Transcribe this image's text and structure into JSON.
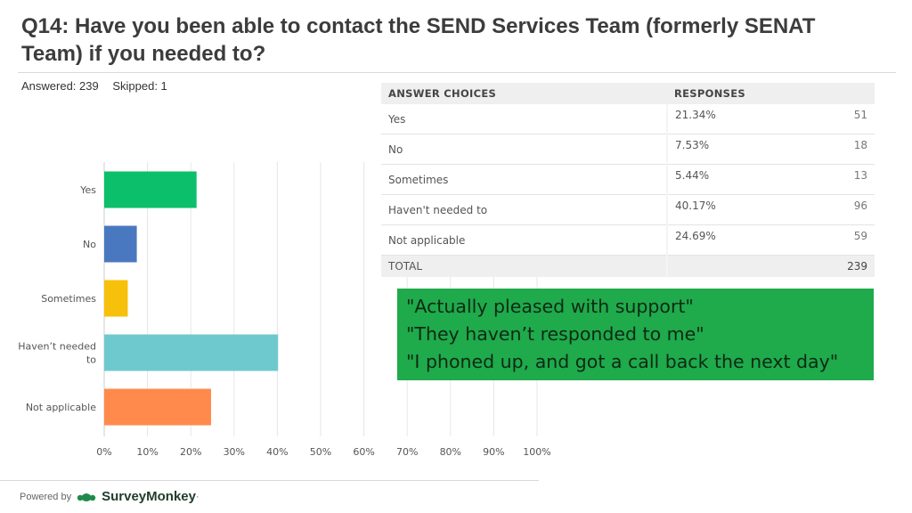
{
  "title": "Q14: Have you been able to contact the SEND Services Team (formerly SENAT Team) if you needed to?",
  "stats": {
    "answered": "Answered: 239",
    "skipped": "Skipped: 1"
  },
  "chart_data": {
    "type": "bar",
    "orientation": "horizontal",
    "categories": [
      "Yes",
      "No",
      "Sometimes",
      "Haven’t needed to",
      "Not applicable"
    ],
    "category_lines": [
      [
        "Yes"
      ],
      [
        "No"
      ],
      [
        "Sometimes"
      ],
      [
        "Haven’t needed",
        "to"
      ],
      [
        "Not applicable"
      ]
    ],
    "values": [
      21.34,
      7.53,
      5.44,
      40.17,
      24.69
    ],
    "colors": [
      "#0bbf6b",
      "#4a78c0",
      "#f7c00a",
      "#6ec9cf",
      "#ff8a4c"
    ],
    "xlim": [
      0,
      100
    ],
    "ticks": [
      "0%",
      "10%",
      "20%",
      "30%",
      "40%",
      "50%",
      "60%",
      "70%",
      "80%",
      "90%",
      "100%"
    ],
    "grid": true
  },
  "table": {
    "headers": [
      "ANSWER CHOICES",
      "RESPONSES"
    ],
    "rows": [
      {
        "choice": "Yes",
        "pct": "21.34%",
        "count": "51"
      },
      {
        "choice": "No",
        "pct": "7.53%",
        "count": "18"
      },
      {
        "choice": "Sometimes",
        "pct": "5.44%",
        "count": "13"
      },
      {
        "choice": "Haven't needed to",
        "pct": "40.17%",
        "count": "96"
      },
      {
        "choice": "Not applicable",
        "pct": "24.69%",
        "count": "59"
      }
    ],
    "total_label": "TOTAL",
    "total_count": "239"
  },
  "quotes": [
    "\"Actually pleased with support\"",
    "\"They haven’t responded to me\"",
    "\"I phoned up, and got a call back the next day\""
  ],
  "footer": {
    "powered_by": "Powered by",
    "brand": "SurveyMonkey",
    "brand_mark": "·"
  },
  "colors": {
    "quote_bg": "#1faa4b",
    "header_bg": "#efefef"
  }
}
